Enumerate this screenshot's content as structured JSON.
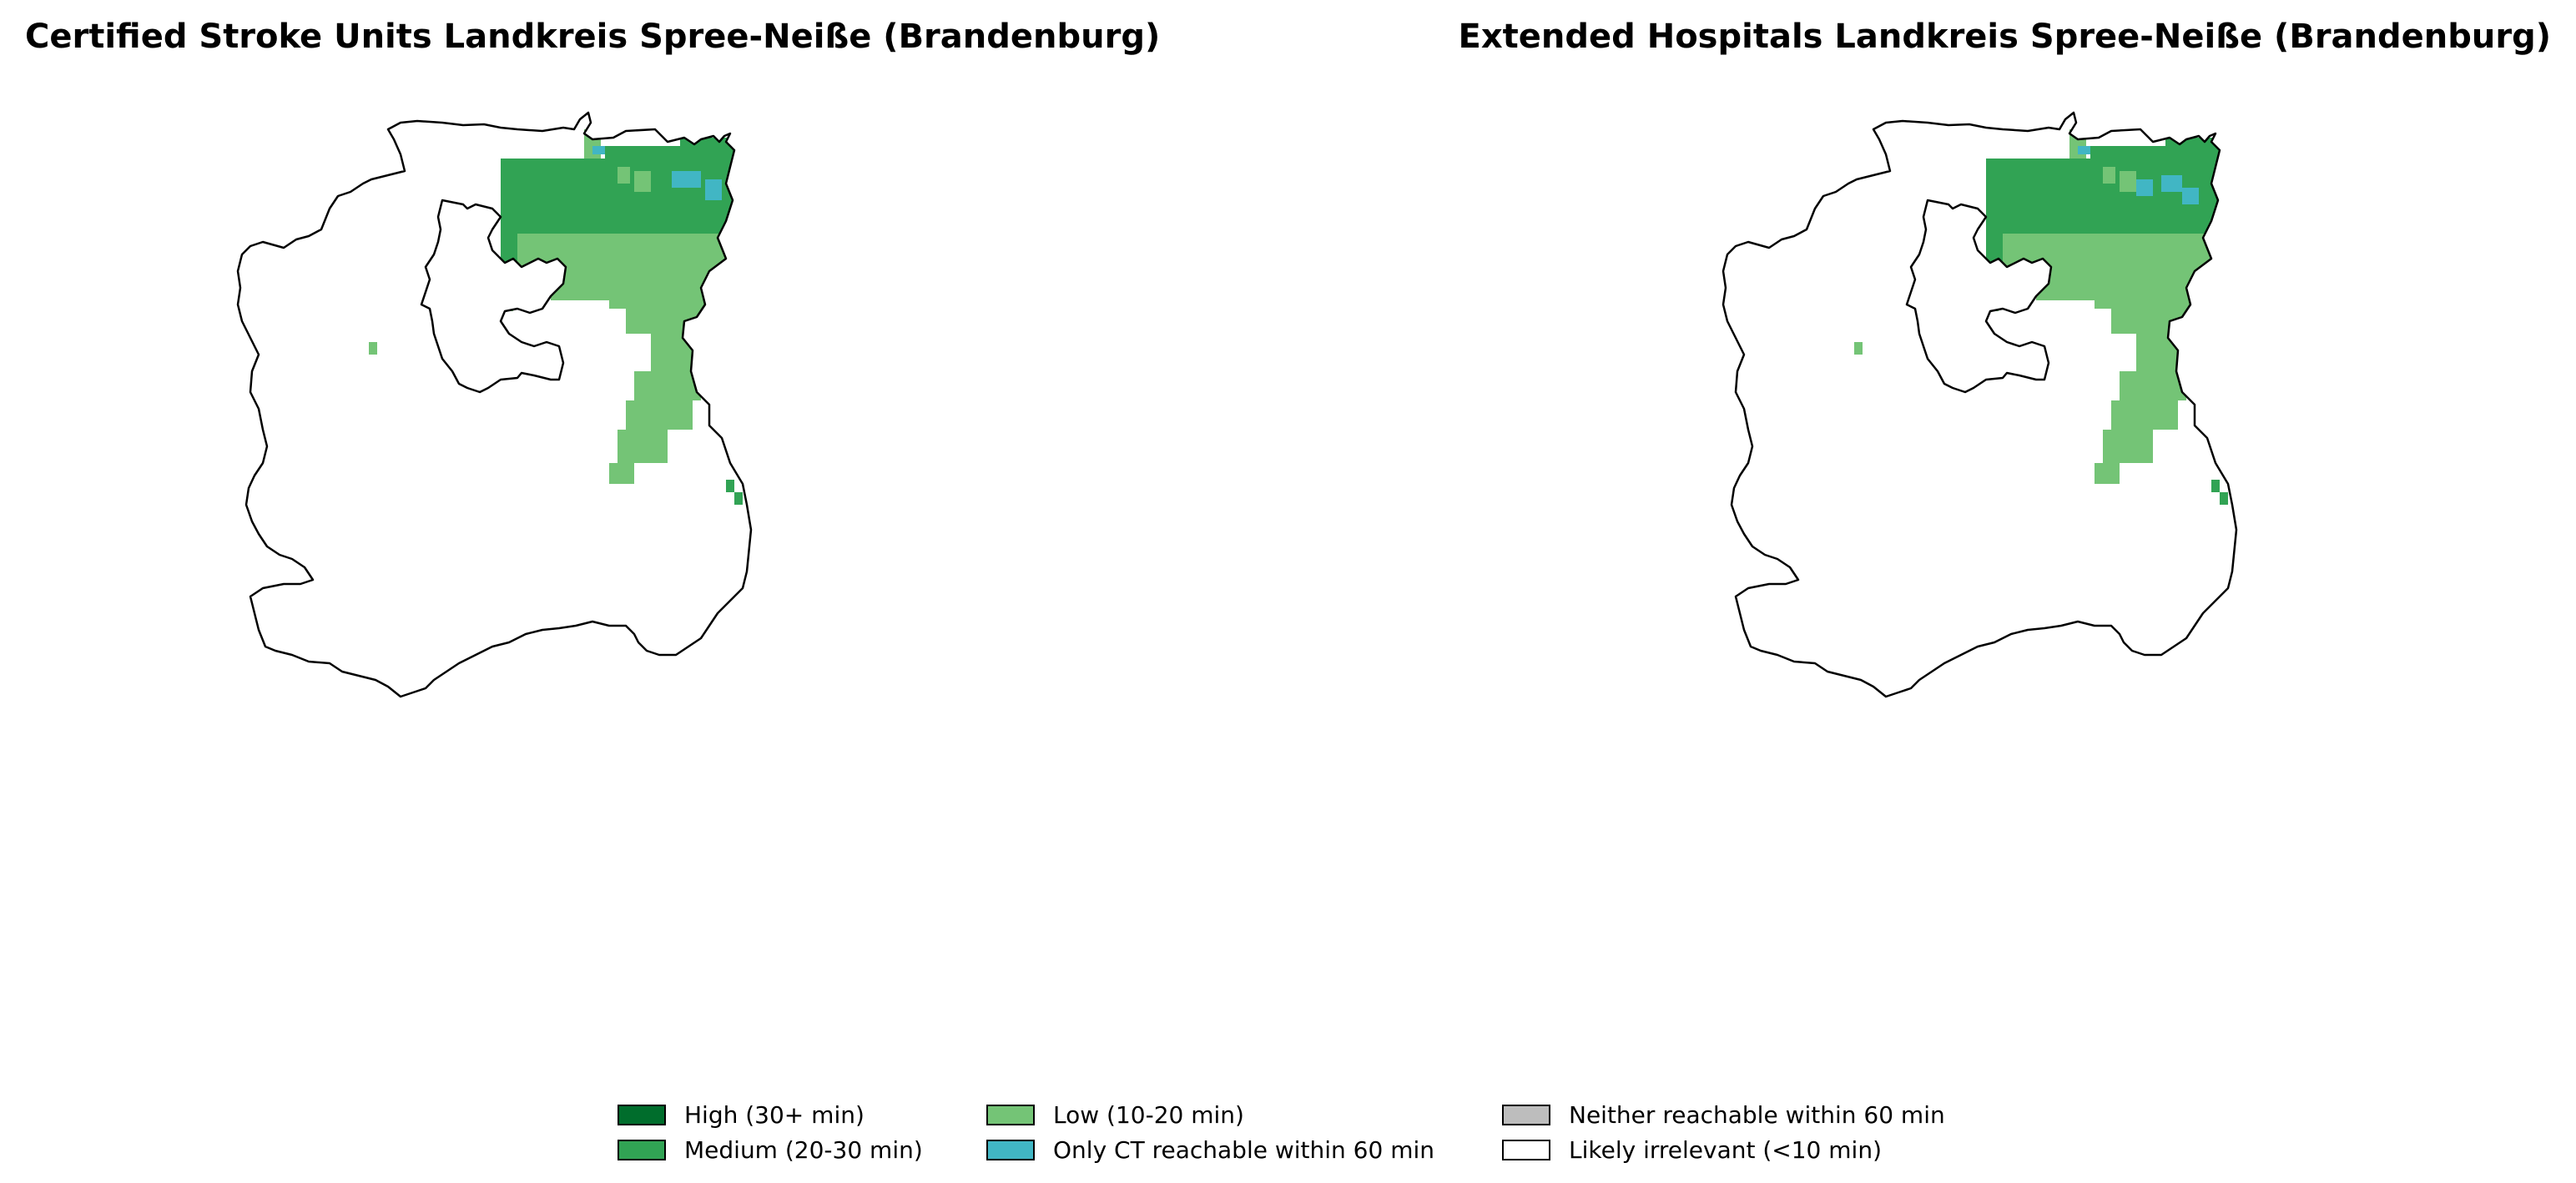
{
  "maps": {
    "left": {
      "title": "Certified Stroke Units Landkreis Spree-Neiße (Brandenburg)"
    },
    "right": {
      "title": "Extended Hospitals Landkreis Spree-Neiße (Brandenburg)"
    }
  },
  "legend": {
    "items": [
      {
        "key": "high",
        "label": "High (30+ min)",
        "color": "#006d2c"
      },
      {
        "key": "medium",
        "label": "Medium (20-30 min)",
        "color": "#31a354"
      },
      {
        "key": "low",
        "label": "Low (10-20 min)",
        "color": "#74c476"
      },
      {
        "key": "ct",
        "label": "Only CT reachable within 60 min",
        "color": "#41b6c4"
      },
      {
        "key": "neither",
        "label": "Neither reachable within 60 min",
        "color": "#bdbdbd"
      },
      {
        "key": "irrelevant",
        "label": "Likely irrelevant (<10 min)",
        "color": "#ffffff"
      }
    ]
  }
}
